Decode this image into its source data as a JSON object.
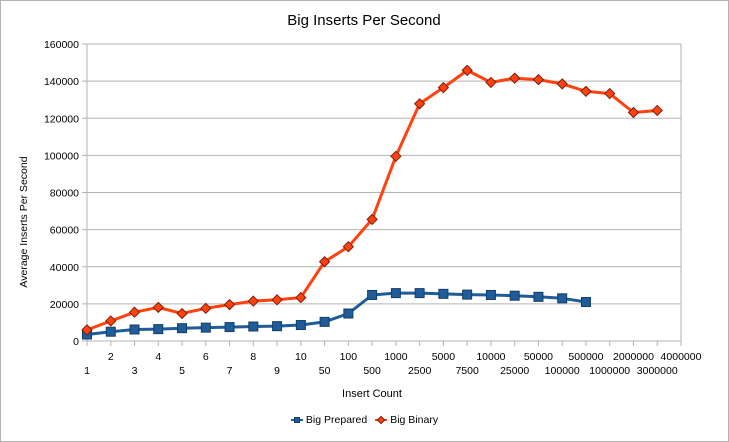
{
  "chart_data": {
    "type": "line",
    "title": "Big Inserts Per Second",
    "xlabel": "Insert Count",
    "ylabel": "Average Inserts Per Second",
    "categories": [
      "1",
      "2",
      "3",
      "4",
      "5",
      "6",
      "7",
      "8",
      "9",
      "10",
      "50",
      "100",
      "500",
      "1000",
      "2500",
      "5000",
      "7500",
      "10000",
      "25000",
      "50000",
      "100000",
      "500000",
      "1000000",
      "2000000",
      "3000000",
      "4000000"
    ],
    "ylim": [
      0,
      160000
    ],
    "yticks": [
      0,
      20000,
      40000,
      60000,
      80000,
      100000,
      120000,
      140000,
      160000
    ],
    "ytick_labels": [
      "0",
      "20000",
      "40000",
      "60000",
      "80000",
      "100000",
      "120000",
      "140000",
      "160000"
    ],
    "grid": true,
    "legend_position": "bottom",
    "series": [
      {
        "name": "Big Prepared",
        "color": "#1f5c99",
        "marker": "square",
        "values": [
          3500,
          5000,
          6200,
          6400,
          6900,
          7200,
          7500,
          7800,
          8000,
          8600,
          10300,
          14800,
          24800,
          25800,
          25800,
          25400,
          25000,
          24800,
          24400,
          23800,
          23000,
          21000,
          null,
          null,
          null,
          null
        ]
      },
      {
        "name": "Big Binary",
        "color": "#ff420e",
        "marker": "diamond",
        "values": [
          6000,
          10800,
          15500,
          18100,
          14800,
          17600,
          19600,
          21500,
          22200,
          23400,
          42700,
          50800,
          65500,
          99500,
          127800,
          136500,
          145800,
          139300,
          141600,
          140800,
          138500,
          134500,
          133300,
          123100,
          124200,
          null
        ]
      }
    ]
  }
}
